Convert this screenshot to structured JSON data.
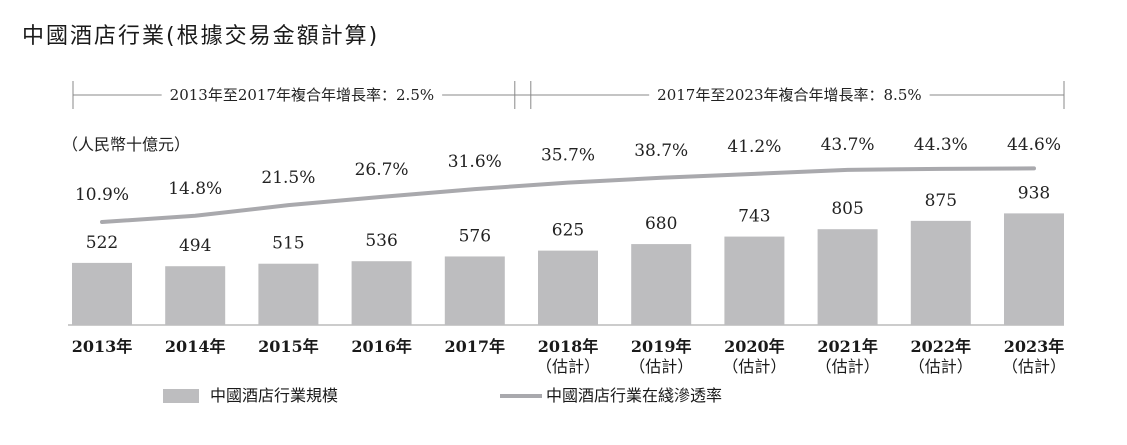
{
  "title": "中國酒店行業(根據交易金額計算)",
  "cagr": [
    {
      "label": "2013年至2017年複合年增長率：2.5%",
      "from": "2013年",
      "to": "2017年"
    },
    {
      "label": "2017年至2023年複合年增長率：8.5%",
      "from": "2017年",
      "to": "2023年"
    }
  ],
  "unit": "（人民幣十億元）",
  "chart_data": {
    "type": "bar",
    "categories": [
      [
        "2013年"
      ],
      [
        "2014年"
      ],
      [
        "2015年"
      ],
      [
        "2016年"
      ],
      [
        "2017年"
      ],
      [
        "2018年",
        "（估計）"
      ],
      [
        "2019年",
        "（估計）"
      ],
      [
        "2020年",
        "（估計）"
      ],
      [
        "2021年",
        "（估計）"
      ],
      [
        "2022年",
        "（估計）"
      ],
      [
        "2023年",
        "（估計）"
      ]
    ],
    "series": [
      {
        "name": "中國酒店行業規模",
        "type": "bar",
        "values": [
          522,
          494,
          515,
          536,
          576,
          625,
          680,
          743,
          805,
          875,
          938
        ],
        "labels": [
          "522",
          "494",
          "515",
          "536",
          "576",
          "625",
          "680",
          "743",
          "805",
          "875",
          "938"
        ],
        "color": "#bdbdbf"
      },
      {
        "name": "中國酒店行業在綫滲透率",
        "type": "line",
        "values": [
          10.9,
          14.8,
          21.5,
          26.7,
          31.6,
          35.7,
          38.7,
          41.2,
          43.7,
          44.3,
          44.6
        ],
        "labels": [
          "10.9%",
          "14.8%",
          "21.5%",
          "26.7%",
          "31.6%",
          "35.7%",
          "38.7%",
          "41.2%",
          "43.7%",
          "44.3%",
          "44.6%"
        ],
        "color": "#a9a9ad"
      }
    ]
  }
}
